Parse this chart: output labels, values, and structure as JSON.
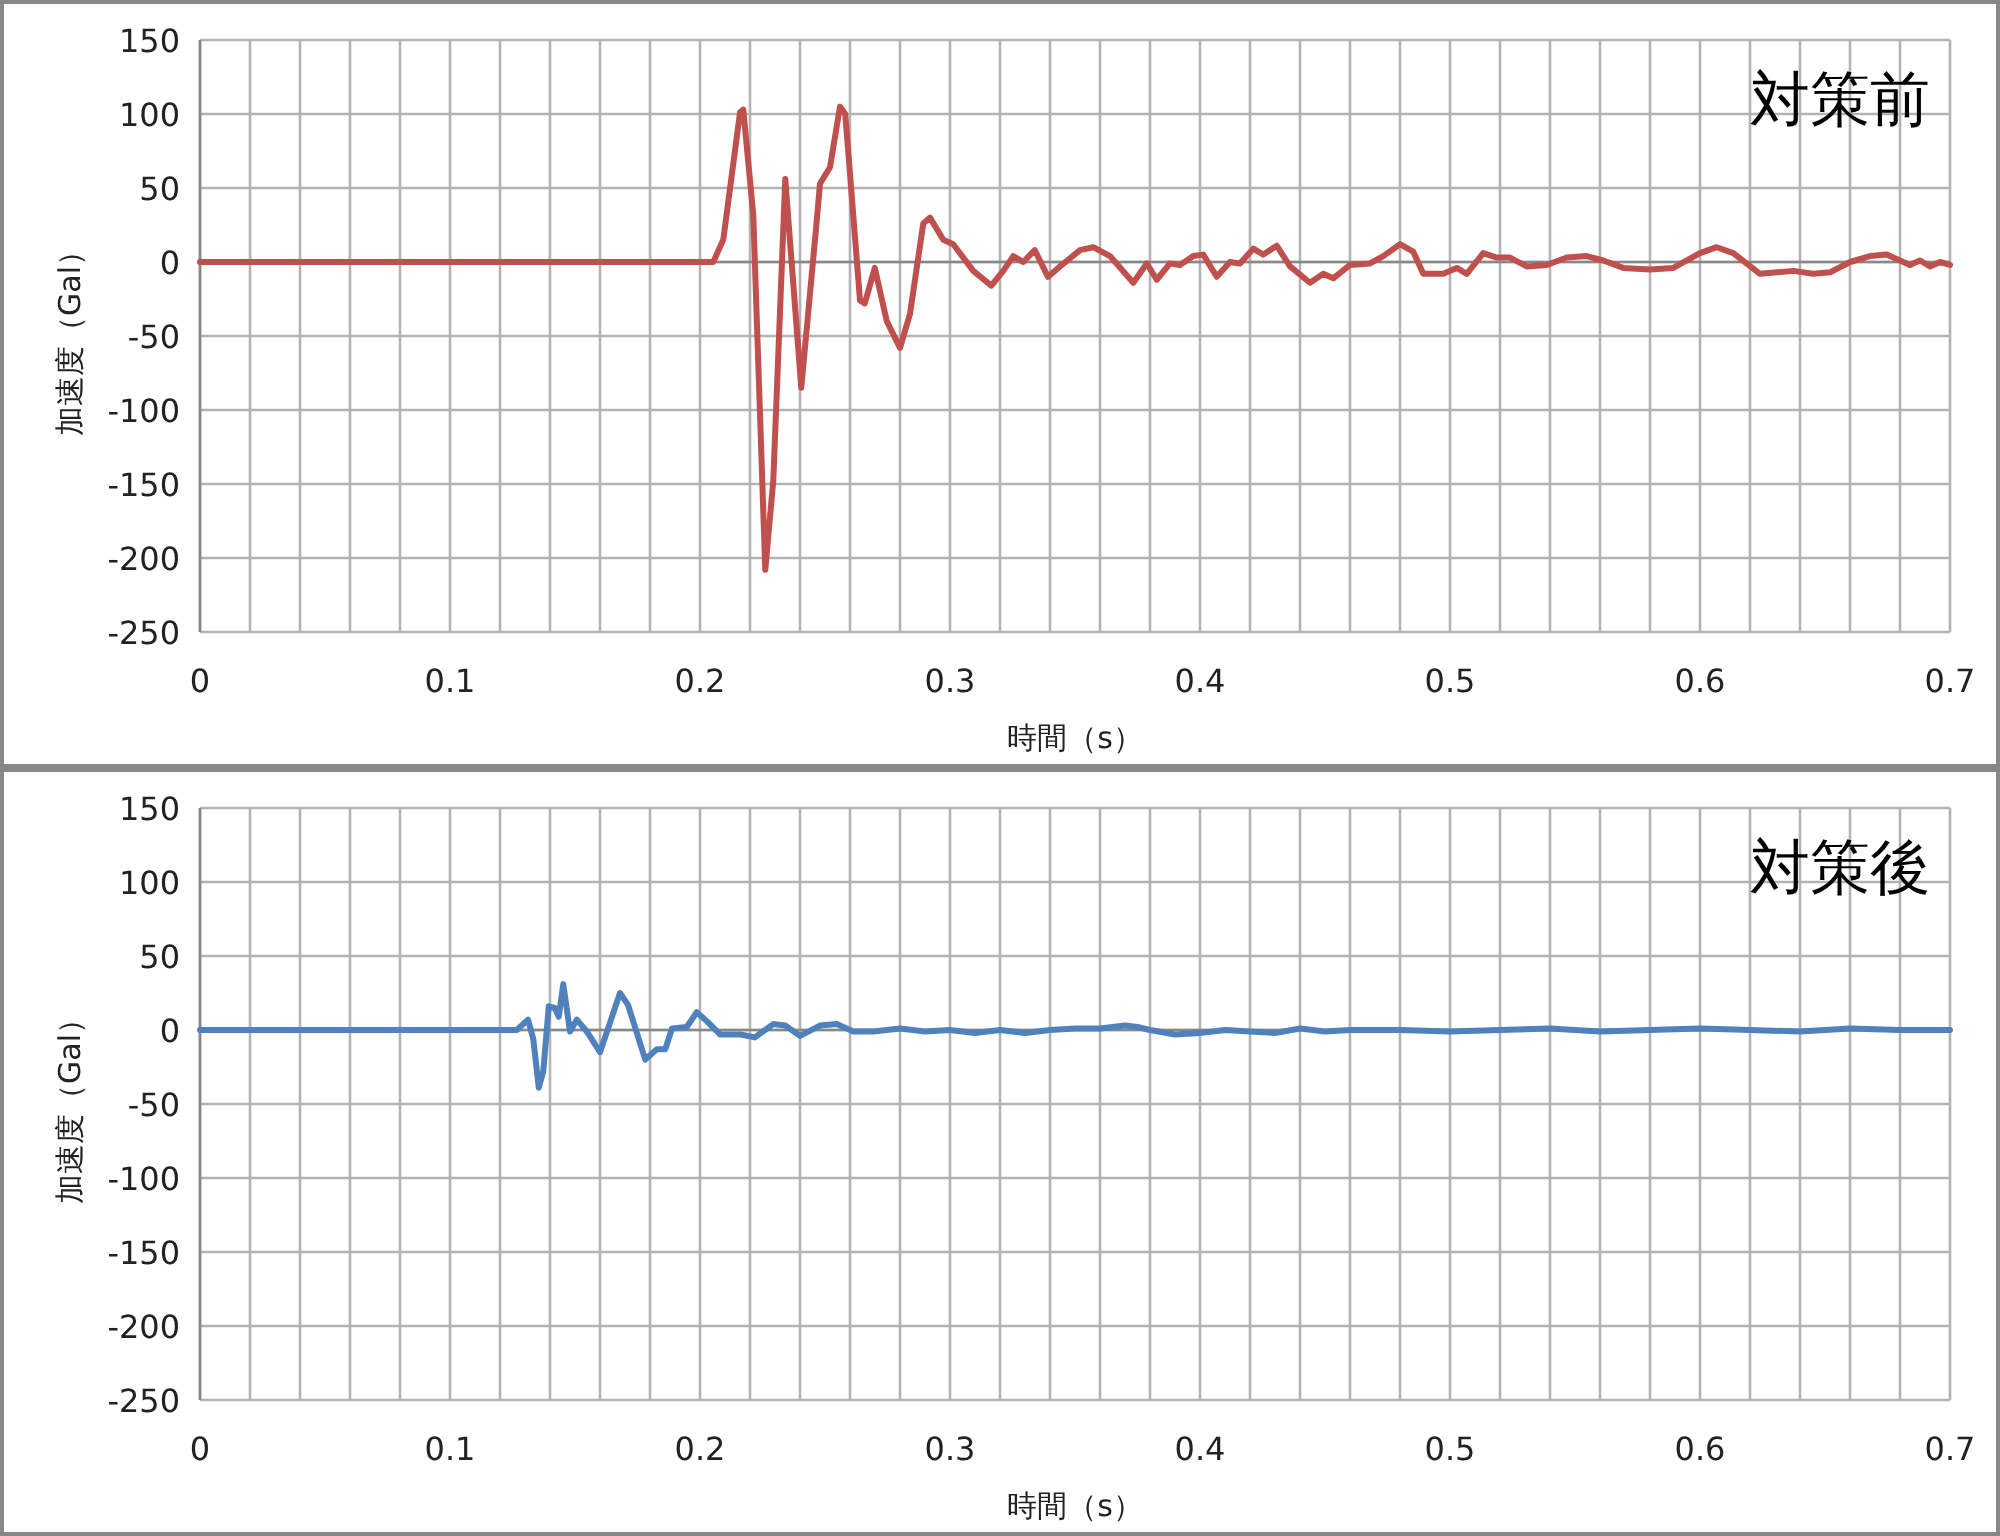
{
  "chart_data": [
    {
      "type": "line",
      "title": "対策前",
      "xlabel": "時間（s）",
      "ylabel": "加速度（Gal）",
      "color": "#c0504d",
      "grid": true,
      "marker": "none",
      "line_style": "solid",
      "xlim": [
        0,
        0.7
      ],
      "ylim": [
        -250,
        150
      ],
      "yticks": [
        150,
        100,
        50,
        0,
        -50,
        -100,
        -150,
        -200,
        -250
      ],
      "xticks": [
        0,
        {
          "value": 0.02,
          "label": null
        },
        {
          "value": 0.04,
          "label": null
        },
        {
          "value": 0.06,
          "label": null
        },
        {
          "value": 0.08,
          "label": null
        },
        0.1,
        {
          "value": 0.12,
          "label": null
        },
        {
          "value": 0.14,
          "label": null
        },
        {
          "value": 0.16,
          "label": null
        },
        {
          "value": 0.18,
          "label": null
        },
        0.2,
        {
          "value": 0.22,
          "label": null
        },
        {
          "value": 0.24,
          "label": null
        },
        {
          "value": 0.26,
          "label": null
        },
        {
          "value": 0.28,
          "label": null
        },
        0.3,
        {
          "value": 0.32,
          "label": null
        },
        {
          "value": 0.34,
          "label": null
        },
        {
          "value": 0.36,
          "label": null
        },
        {
          "value": 0.38,
          "label": null
        },
        0.4,
        {
          "value": 0.42,
          "label": null
        },
        {
          "value": 0.44,
          "label": null
        },
        {
          "value": 0.46,
          "label": null
        },
        {
          "value": 0.48,
          "label": null
        },
        0.5,
        {
          "value": 0.52,
          "label": null
        },
        {
          "value": 0.54,
          "label": null
        },
        {
          "value": 0.56,
          "label": null
        },
        {
          "value": 0.58,
          "label": null
        },
        0.6,
        {
          "value": 0.62,
          "label": null
        },
        {
          "value": 0.64,
          "label": null
        },
        {
          "value": 0.66,
          "label": null
        },
        {
          "value": 0.68,
          "label": null
        },
        0.7
      ],
      "x": [
        0,
        0.02,
        0.04,
        0.06,
        0.08,
        0.1,
        0.12,
        0.14,
        0.16,
        0.18,
        0.2,
        0.2053,
        0.2093,
        0.216,
        0.2173,
        0.2213,
        0.2261,
        0.2293,
        0.2341,
        0.2405,
        0.2467,
        0.248,
        0.252,
        0.256,
        0.2581,
        0.264,
        0.2659,
        0.2699,
        0.2747,
        0.28,
        0.284,
        0.2893,
        0.292,
        0.2973,
        0.3013,
        0.3093,
        0.3165,
        0.3213,
        0.3253,
        0.3293,
        0.3339,
        0.3392,
        0.344,
        0.352,
        0.3573,
        0.364,
        0.3733,
        0.3787,
        0.3827,
        0.388,
        0.392,
        0.3973,
        0.4013,
        0.4067,
        0.412,
        0.416,
        0.4213,
        0.4253,
        0.4307,
        0.436,
        0.444,
        0.4493,
        0.4533,
        0.46,
        0.468,
        0.4733,
        0.48,
        0.4853,
        0.4893,
        0.4973,
        0.5027,
        0.5067,
        0.5133,
        0.5187,
        0.524,
        0.5307,
        0.5387,
        0.5467,
        0.5547,
        0.5613,
        0.5693,
        0.58,
        0.5893,
        0.6,
        0.6067,
        0.6133,
        0.624,
        0.6373,
        0.6453,
        0.652,
        0.66,
        0.668,
        0.6747,
        0.684,
        0.688,
        0.692,
        0.696,
        0.7
      ],
      "values": [
        0,
        0,
        0,
        0,
        0,
        0,
        0,
        0,
        0,
        0,
        0,
        0,
        15,
        101,
        103,
        32,
        -208,
        -148,
        56,
        -85,
        28,
        53,
        64,
        105,
        100,
        -26,
        -28,
        -4,
        -40,
        -58,
        -35,
        26,
        30,
        15,
        12,
        -6,
        -16,
        -6,
        4,
        0,
        8,
        -10,
        -3,
        8,
        10,
        4,
        -14,
        -1,
        -12,
        -1,
        -2,
        4,
        5,
        -10,
        0,
        -1,
        9,
        5,
        11,
        -3,
        -14,
        -8,
        -11,
        -2,
        -1,
        4,
        12,
        7,
        -8,
        -8,
        -4,
        -8,
        6,
        3,
        3,
        -3,
        -2,
        3,
        4,
        1,
        -4,
        -5,
        -4,
        6,
        10,
        6,
        -8,
        -6,
        -8,
        -7,
        0,
        4,
        5,
        -2,
        1,
        -3,
        0,
        -2
      ]
    },
    {
      "type": "line",
      "title": "対策後",
      "xlabel": "時間（s）",
      "ylabel": "加速度（Gal）",
      "color": "#4f81bd",
      "grid": true,
      "marker": "none",
      "line_style": "solid",
      "xlim": [
        0,
        0.7
      ],
      "ylim": [
        -250,
        150
      ],
      "yticks": [
        150,
        100,
        50,
        0,
        -50,
        -100,
        -150,
        -200,
        -250
      ],
      "xticks": [
        0,
        {
          "value": 0.02,
          "label": null
        },
        {
          "value": 0.04,
          "label": null
        },
        {
          "value": 0.06,
          "label": null
        },
        {
          "value": 0.08,
          "label": null
        },
        0.1,
        {
          "value": 0.12,
          "label": null
        },
        {
          "value": 0.14,
          "label": null
        },
        {
          "value": 0.16,
          "label": null
        },
        {
          "value": 0.18,
          "label": null
        },
        0.2,
        {
          "value": 0.22,
          "label": null
        },
        {
          "value": 0.24,
          "label": null
        },
        {
          "value": 0.26,
          "label": null
        },
        {
          "value": 0.28,
          "label": null
        },
        0.3,
        {
          "value": 0.32,
          "label": null
        },
        {
          "value": 0.34,
          "label": null
        },
        {
          "value": 0.36,
          "label": null
        },
        {
          "value": 0.38,
          "label": null
        },
        0.4,
        {
          "value": 0.42,
          "label": null
        },
        {
          "value": 0.44,
          "label": null
        },
        {
          "value": 0.46,
          "label": null
        },
        {
          "value": 0.48,
          "label": null
        },
        0.5,
        {
          "value": 0.52,
          "label": null
        },
        {
          "value": 0.54,
          "label": null
        },
        {
          "value": 0.56,
          "label": null
        },
        {
          "value": 0.58,
          "label": null
        },
        0.6,
        {
          "value": 0.62,
          "label": null
        },
        {
          "value": 0.64,
          "label": null
        },
        {
          "value": 0.66,
          "label": null
        },
        {
          "value": 0.68,
          "label": null
        },
        0.7
      ],
      "x": [
        0,
        0.02,
        0.04,
        0.06,
        0.08,
        0.1,
        0.112,
        0.1267,
        0.1312,
        0.1333,
        0.1355,
        0.1373,
        0.1395,
        0.1419,
        0.1435,
        0.1453,
        0.148,
        0.1507,
        0.1547,
        0.16,
        0.164,
        0.168,
        0.1712,
        0.1781,
        0.1827,
        0.1861,
        0.1888,
        0.1947,
        0.1987,
        0.2027,
        0.208,
        0.2163,
        0.2219,
        0.2293,
        0.2341,
        0.24,
        0.248,
        0.2547,
        0.2613,
        0.2693,
        0.28,
        0.29,
        0.3,
        0.31,
        0.32,
        0.33,
        0.34,
        0.35,
        0.36,
        0.37,
        0.375,
        0.38,
        0.39,
        0.4,
        0.41,
        0.42,
        0.43,
        0.44,
        0.45,
        0.46,
        0.48,
        0.5,
        0.52,
        0.54,
        0.56,
        0.58,
        0.6,
        0.62,
        0.64,
        0.66,
        0.68,
        0.7
      ],
      "values": [
        0,
        0,
        0,
        0,
        0,
        0,
        0,
        0,
        7,
        -6,
        -39,
        -28,
        16,
        15,
        9,
        31,
        -1,
        7,
        -1,
        -15,
        5,
        25,
        17,
        -20,
        -13,
        -13,
        1,
        2,
        12,
        6,
        -3,
        -3,
        -5,
        4,
        3,
        -4,
        3,
        4,
        -1,
        -1,
        1,
        -1,
        0,
        -2,
        0,
        -2,
        0,
        1,
        1,
        3,
        2,
        0,
        -3,
        -2,
        0,
        -1,
        -2,
        1,
        -1,
        0,
        0,
        -1,
        0,
        1,
        -1,
        0,
        1,
        0,
        -1,
        1,
        0,
        0
      ]
    }
  ]
}
